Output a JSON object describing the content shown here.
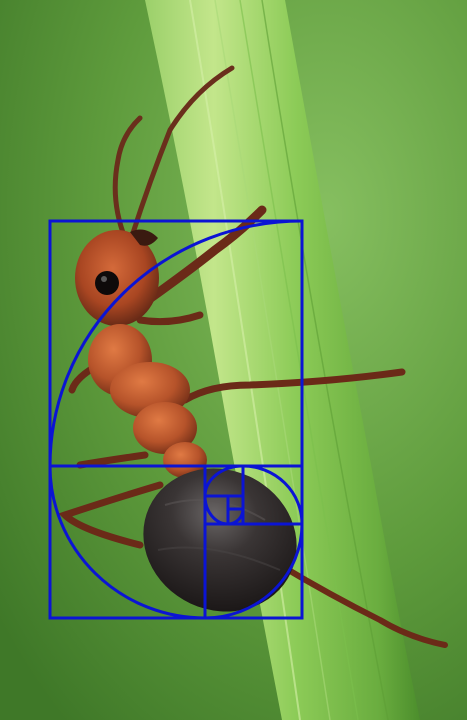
{
  "photo": {
    "subject": "ant-on-grass-blade",
    "background_colors": {
      "light": "#7fb85a",
      "mid": "#5c9a3a",
      "dark": "#3f7a2a"
    },
    "blade_colors": {
      "light": "#b7df7f",
      "mid": "#7ec24e",
      "edge": "#4f9a2e"
    },
    "ant_colors": {
      "head": "#b14a24",
      "thorax": "#c4582c",
      "gaster": "#2a2525",
      "legs": "#6b2a18"
    }
  },
  "overlay": {
    "type": "golden-ratio-spiral",
    "stroke_color": "#0b14d4"
  }
}
